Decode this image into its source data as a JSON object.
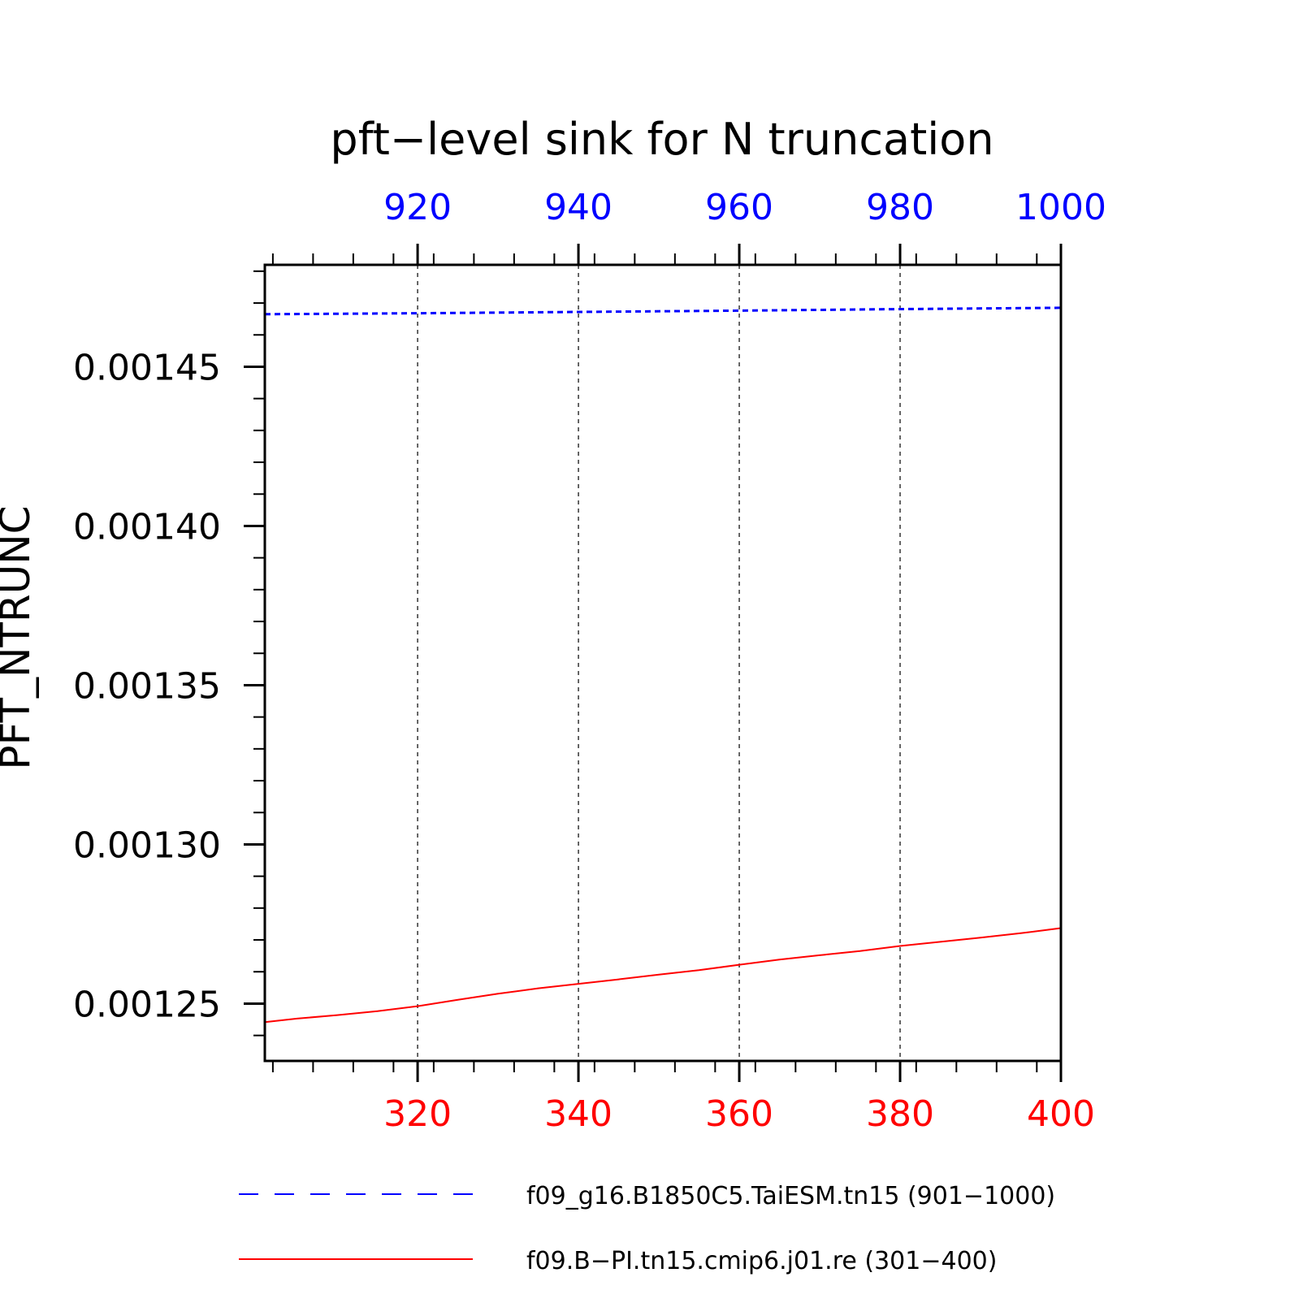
{
  "chart_data": {
    "type": "line",
    "title": "pft−level sink for N truncation",
    "ylabel": "PFT_NTRUNC",
    "xlabel": "",
    "ylim": [
      0.001232,
      0.001482
    ],
    "y_ticks": [
      0.00125,
      0.0013,
      0.00135,
      0.0014,
      0.00145
    ],
    "y_tick_labels": [
      "0.00125",
      "0.00130",
      "0.00135",
      "0.00140",
      "0.00145"
    ],
    "grid": "vertical dashed at major x ticks",
    "legend_placement": "bottom",
    "x_axes": {
      "bottom": {
        "color": "#ff0000",
        "range": [
          301,
          400
        ],
        "ticks": [
          320,
          340,
          360,
          380,
          400
        ],
        "tick_labels": [
          "320",
          "340",
          "360",
          "380",
          "400"
        ]
      },
      "top": {
        "color": "#0000ff",
        "range": [
          901,
          1000
        ],
        "ticks": [
          920,
          940,
          960,
          980,
          1000
        ],
        "tick_labels": [
          "920",
          "940",
          "960",
          "980",
          "1000"
        ]
      }
    },
    "series": [
      {
        "name": "f09_g16.B1850C5.TaiESM.tn15 (901−1000)",
        "color": "#0000ff",
        "style": "dashed",
        "axis": "top",
        "x": [
          901,
          920,
          940,
          960,
          980,
          1000
        ],
        "y": [
          0.0014665,
          0.0014668,
          0.0014672,
          0.0014676,
          0.0014681,
          0.0014685
        ]
      },
      {
        "name": "f09.B−PI.tn15.cmip6.j01.re (301−400)",
        "color": "#ff0000",
        "style": "solid",
        "axis": "bottom",
        "x": [
          301,
          305,
          310,
          315,
          320,
          325,
          330,
          335,
          340,
          345,
          350,
          355,
          360,
          365,
          370,
          375,
          380,
          385,
          390,
          395,
          400
        ],
        "y": [
          0.0012442,
          0.0012453,
          0.0012464,
          0.0012476,
          0.0012492,
          0.0012512,
          0.0012531,
          0.0012548,
          0.0012562,
          0.0012576,
          0.0012591,
          0.0012605,
          0.0012622,
          0.0012638,
          0.0012652,
          0.0012665,
          0.0012681,
          0.0012694,
          0.0012707,
          0.0012721,
          0.0012737
        ]
      }
    ]
  }
}
